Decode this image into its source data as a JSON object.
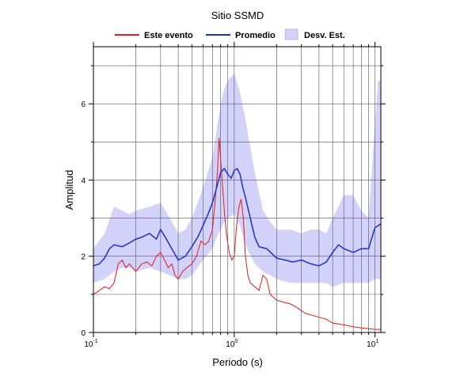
{
  "chart_data": {
    "type": "line",
    "title": "Sitio SSMD",
    "xlabel": "Periodo (s)",
    "ylabel": "Amplitud",
    "x_scale": "log",
    "xlim": [
      0.1,
      11
    ],
    "ylim": [
      0,
      7.5
    ],
    "grid": true,
    "legend_position": "top",
    "x_ticks": [
      {
        "value": 0.1,
        "base": "10",
        "exp": "-1"
      },
      {
        "value": 1,
        "base": "10",
        "exp": "0"
      },
      {
        "value": 10,
        "base": "10",
        "exp": "1"
      }
    ],
    "y_ticks": [
      {
        "value": 0,
        "label": "0"
      },
      {
        "value": 2,
        "label": "2"
      },
      {
        "value": 4,
        "label": "4"
      },
      {
        "value": 6,
        "label": "6"
      }
    ],
    "legend": [
      {
        "label": "Este evento",
        "kind": "line",
        "color": "#e41a1c"
      },
      {
        "label": "Promedio",
        "kind": "line",
        "color": "#1f2fd1"
      },
      {
        "label": "Desv. Est.",
        "kind": "band",
        "color": "#d2d2fa"
      }
    ],
    "band": {
      "name": "Desv. Est.",
      "color": "#d2d2fa",
      "x": [
        0.1,
        0.12,
        0.14,
        0.16,
        0.18,
        0.2,
        0.25,
        0.3,
        0.35,
        0.4,
        0.45,
        0.5,
        0.6,
        0.7,
        0.75,
        0.8,
        0.85,
        0.9,
        1.0,
        1.1,
        1.2,
        1.4,
        1.6,
        1.8,
        2,
        2.5,
        3,
        3.5,
        4,
        4.5,
        5,
        6,
        7,
        8,
        9,
        10,
        10.5,
        11
      ],
      "upper": [
        2.2,
        2.6,
        3.3,
        3.2,
        3.1,
        3.2,
        3.3,
        3.4,
        3.0,
        2.6,
        2.7,
        3.0,
        3.8,
        4.6,
        5.3,
        6.0,
        6.4,
        6.6,
        6.8,
        6.3,
        5.6,
        4.2,
        3.2,
        2.9,
        2.7,
        2.7,
        2.6,
        2.7,
        2.7,
        2.6,
        3.0,
        3.6,
        3.6,
        3.2,
        3.0,
        5.5,
        6.6,
        6.6
      ],
      "lower": [
        1.3,
        1.4,
        1.6,
        1.7,
        1.7,
        1.6,
        1.7,
        1.6,
        1.5,
        1.4,
        1.4,
        1.5,
        1.9,
        2.2,
        2.5,
        2.7,
        2.9,
        3.0,
        3.1,
        2.8,
        2.3,
        1.8,
        1.6,
        1.5,
        1.4,
        1.3,
        1.3,
        1.3,
        1.3,
        1.3,
        1.2,
        1.3,
        1.3,
        1.3,
        1.3,
        1.4,
        1.4,
        1.4
      ]
    },
    "series": [
      {
        "name": "Este evento",
        "color": "#e41a1c",
        "x": [
          0.1,
          0.11,
          0.12,
          0.13,
          0.14,
          0.15,
          0.16,
          0.17,
          0.18,
          0.19,
          0.2,
          0.22,
          0.24,
          0.26,
          0.28,
          0.3,
          0.32,
          0.34,
          0.36,
          0.38,
          0.4,
          0.43,
          0.46,
          0.5,
          0.54,
          0.58,
          0.62,
          0.66,
          0.7,
          0.73,
          0.76,
          0.78,
          0.8,
          0.82,
          0.85,
          0.88,
          0.92,
          0.96,
          1.0,
          1.04,
          1.08,
          1.12,
          1.16,
          1.2,
          1.25,
          1.3,
          1.4,
          1.5,
          1.6,
          1.7,
          1.8,
          2.0,
          2.2,
          2.5,
          2.8,
          3.2,
          3.6,
          4.0,
          4.5,
          5.0,
          6.0,
          7.0,
          8.0,
          9.0,
          10.0,
          11.0
        ],
        "values": [
          1.0,
          1.1,
          1.2,
          1.15,
          1.3,
          1.8,
          1.9,
          1.7,
          1.8,
          1.7,
          1.6,
          1.8,
          1.85,
          1.75,
          2.0,
          2.1,
          1.9,
          1.7,
          1.8,
          1.5,
          1.4,
          1.6,
          1.7,
          1.8,
          2.0,
          2.4,
          2.3,
          2.4,
          2.7,
          3.4,
          4.2,
          5.1,
          4.6,
          4.0,
          3.2,
          2.6,
          2.1,
          1.9,
          2.0,
          2.8,
          3.3,
          3.5,
          3.0,
          2.0,
          1.5,
          1.3,
          1.2,
          1.1,
          1.5,
          1.4,
          1.0,
          0.85,
          0.8,
          0.75,
          0.65,
          0.5,
          0.45,
          0.4,
          0.35,
          0.25,
          0.2,
          0.15,
          0.12,
          0.1,
          0.08,
          0.08
        ]
      },
      {
        "name": "Promedio",
        "color": "#1f2fd1",
        "x": [
          0.1,
          0.11,
          0.12,
          0.13,
          0.14,
          0.16,
          0.18,
          0.2,
          0.22,
          0.25,
          0.28,
          0.3,
          0.33,
          0.36,
          0.4,
          0.45,
          0.5,
          0.55,
          0.6,
          0.65,
          0.7,
          0.75,
          0.8,
          0.85,
          0.9,
          0.95,
          1.0,
          1.05,
          1.1,
          1.15,
          1.2,
          1.3,
          1.4,
          1.5,
          1.7,
          2.0,
          2.3,
          2.6,
          3.0,
          3.5,
          4.0,
          4.5,
          5.0,
          5.5,
          6.0,
          7.0,
          8.0,
          9.0,
          10.0,
          11.0
        ],
        "values": [
          1.75,
          1.8,
          1.95,
          2.2,
          2.3,
          2.25,
          2.35,
          2.45,
          2.5,
          2.6,
          2.45,
          2.7,
          2.45,
          2.2,
          1.9,
          2.0,
          2.25,
          2.5,
          2.8,
          3.1,
          3.4,
          3.8,
          4.2,
          4.3,
          4.15,
          4.05,
          4.25,
          4.3,
          4.15,
          3.8,
          3.55,
          3.0,
          2.5,
          2.25,
          2.2,
          1.95,
          1.9,
          1.85,
          1.9,
          1.8,
          1.75,
          1.85,
          2.1,
          2.3,
          2.2,
          2.1,
          2.2,
          2.2,
          2.75,
          2.85
        ]
      }
    ]
  }
}
